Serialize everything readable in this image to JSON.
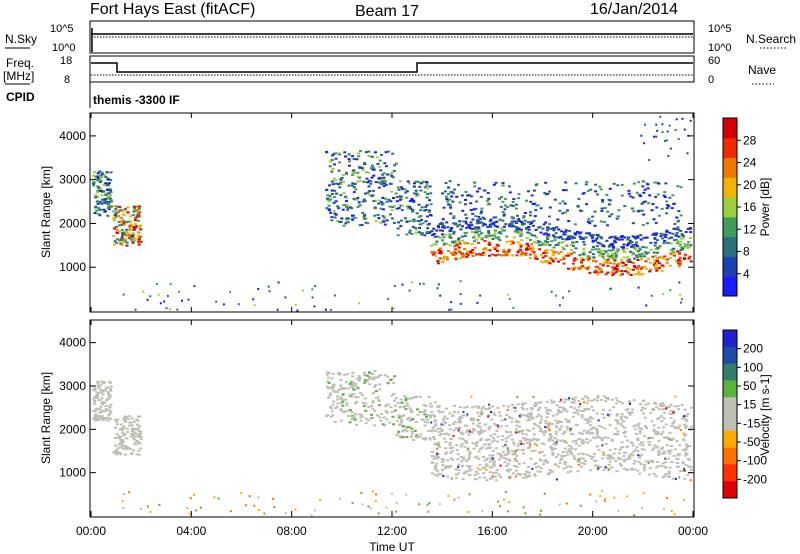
{
  "header": {
    "title": "Fort Hays East (fitACF)",
    "beam": "Beam 17",
    "date": "16/Jan/2014"
  },
  "top_panels": {
    "nsky_label": "N.Sky",
    "nsearch_label": "N.Search",
    "nsky_ticks": [
      "10^5",
      "10^0"
    ],
    "nsearch_ticks": [
      "10^5",
      "10^0"
    ],
    "freq_label": "Freq.",
    "freq_unit": "[MHz]",
    "freq_ticks": [
      "18",
      "8"
    ],
    "nave_label": "Nave",
    "nave_ticks": [
      "60",
      "0"
    ],
    "cpid_label": "CPID",
    "cpid_text": "themis -3300 IF"
  },
  "chart_data": [
    {
      "type": "heatmap",
      "name_label": "Power",
      "colorbar_label": "Power [dB]",
      "ylabel": "Slant Range [km]",
      "yticks": [
        "1000",
        "2000",
        "3000",
        "4000"
      ],
      "colorbar_ticks": [
        "4",
        "8",
        "12",
        "16",
        "20",
        "24",
        "28"
      ],
      "colors": [
        "#1a1aff",
        "#1e3fb0",
        "#2a6f7a",
        "#3f9c5a",
        "#9bcf3c",
        "#f0b400",
        "#f07800",
        "#ef2c00",
        "#d20000"
      ],
      "ylim": [
        0,
        4500
      ]
    },
    {
      "type": "heatmap",
      "name_label": "Velocity",
      "colorbar_label": "Velocity [m s-1]",
      "ylabel": "Slant Range [km]",
      "yticks": [
        "1000",
        "2000",
        "3000",
        "4000"
      ],
      "colorbar_ticks": [
        "200",
        "100",
        "50",
        "15",
        "-15",
        "-50",
        "-100",
        "-200"
      ],
      "colors": [
        "#2020d0",
        "#1e4aa8",
        "#2f7f6c",
        "#59b43c",
        "#bfbfb5",
        "#bfbfb5",
        "#ffaa00",
        "#ff7000",
        "#ff3000",
        "#e00000"
      ],
      "ylim": [
        0,
        4500
      ]
    }
  ],
  "xaxis": {
    "label": "Time UT",
    "ticks": [
      "00:00",
      "04:00",
      "08:00",
      "12:00",
      "16:00",
      "20:00",
      "00:00"
    ]
  }
}
